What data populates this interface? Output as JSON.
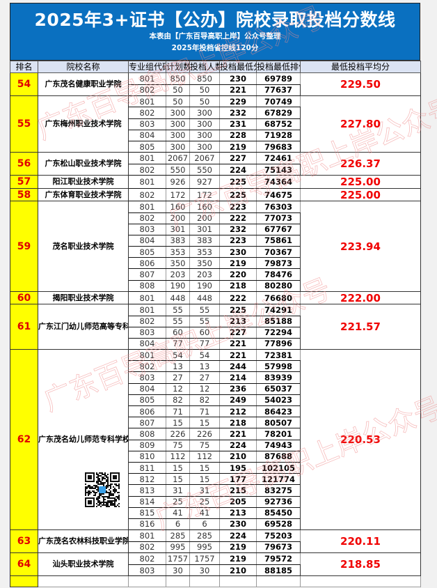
{
  "title": "2025年3+证书【公办】院校录取投档分数线",
  "subtitle": "本表由【广东百导高职上岸】公众号整理",
  "control_line": "2025年投档省控线120分",
  "watermark": "广东百导高职上岸公众号",
  "colors": {
    "banner": "#0a70c0",
    "rank_bg": "#ffff00",
    "rank_text": "#e00000",
    "avg_text": "#f00000",
    "header_bg": "#dbe3f3"
  },
  "columns": [
    "排名",
    "院校名称",
    "专业组代码",
    "计划数",
    "投档人数",
    "投档最低分",
    "投档最低排位",
    "最低投档平均分"
  ],
  "schools": [
    {
      "rank": "54",
      "name": "广东茂名健康职业学院",
      "avg": "229.50",
      "groups": [
        [
          "801",
          "850",
          "850",
          "230",
          "69789"
        ],
        [
          "802",
          "50",
          "50",
          "221",
          "77637"
        ]
      ]
    },
    {
      "rank": "55",
      "name": "广东梅州职业技术学院",
      "avg": "227.80",
      "groups": [
        [
          "801",
          "50",
          "50",
          "229",
          "70749"
        ],
        [
          "802",
          "300",
          "300",
          "232",
          "67829"
        ],
        [
          "803",
          "300",
          "300",
          "231",
          "68752"
        ],
        [
          "804",
          "300",
          "300",
          "228",
          "71928"
        ],
        [
          "805",
          "300",
          "300",
          "219",
          "79683"
        ]
      ]
    },
    {
      "rank": "56",
      "name": "广东松山职业技术学院",
      "avg": "226.37",
      "groups": [
        [
          "801",
          "2067",
          "2067",
          "227",
          "72461"
        ],
        [
          "802",
          "550",
          "550",
          "224",
          "75143"
        ]
      ]
    },
    {
      "rank": "57",
      "name": "阳江职业技术学院",
      "avg": "225.00",
      "groups": [
        [
          "801",
          "926",
          "927",
          "225",
          "74364"
        ]
      ]
    },
    {
      "rank": "58",
      "name": "广东体育职业技术学院",
      "avg": "225.00",
      "groups": [
        [
          "802",
          "172",
          "172",
          "225",
          "74675"
        ]
      ]
    },
    {
      "rank": "59",
      "name": "茂名职业技术学院",
      "avg": "223.94",
      "groups": [
        [
          "801",
          "160",
          "160",
          "223",
          "76303"
        ],
        [
          "802",
          "200",
          "200",
          "222",
          "77073"
        ],
        [
          "803",
          "301",
          "301",
          "232",
          "67767"
        ],
        [
          "804",
          "383",
          "383",
          "223",
          "75861"
        ],
        [
          "805",
          "353",
          "353",
          "230",
          "70367"
        ],
        [
          "806",
          "350",
          "350",
          "219",
          "79873"
        ],
        [
          "807",
          "203",
          "203",
          "220",
          "78476"
        ],
        [
          "808",
          "190",
          "190",
          "218",
          "80280"
        ]
      ]
    },
    {
      "rank": "60",
      "name": "揭阳职业技术学院",
      "avg": "222.00",
      "groups": [
        [
          "801",
          "448",
          "448",
          "222",
          "76680"
        ]
      ]
    },
    {
      "rank": "61",
      "name": "广东江门幼儿师范高等专科学校",
      "avg": "221.57",
      "groups": [
        [
          "801",
          "55",
          "55",
          "225",
          "74291"
        ],
        [
          "802",
          "55",
          "55",
          "213",
          "85188"
        ],
        [
          "803",
          "60",
          "60",
          "227",
          "72294"
        ],
        [
          "804",
          "77",
          "77",
          "221",
          "77896"
        ]
      ]
    },
    {
      "rank": "62",
      "name": "广东茂名幼儿师范专科学校",
      "avg": "220.53",
      "qr": true,
      "groups": [
        [
          "801",
          "54",
          "54",
          "221",
          "72381"
        ],
        [
          "802",
          "13",
          "13",
          "244",
          "57998"
        ],
        [
          "803",
          "27",
          "27",
          "214",
          "83939"
        ],
        [
          "804",
          "12",
          "12",
          "236",
          "65037"
        ],
        [
          "805",
          "82",
          "82",
          "249",
          "54023"
        ],
        [
          "806",
          "71",
          "71",
          "212",
          "86423"
        ],
        [
          "807",
          "15",
          "15",
          "218",
          "80507"
        ],
        [
          "808",
          "226",
          "226",
          "221",
          "78201"
        ],
        [
          "809",
          "75",
          "75",
          "224",
          "74943"
        ],
        [
          "810",
          "112",
          "112",
          "210",
          "87688"
        ],
        [
          "811",
          "15",
          "15",
          "195",
          "102105"
        ],
        [
          "812",
          "15",
          "15",
          "177",
          "121774"
        ],
        [
          "813",
          "31",
          "31",
          "215",
          "83275"
        ],
        [
          "814",
          "25",
          "25",
          "205",
          "92736"
        ],
        [
          "815",
          "41",
          "41",
          "213",
          "85450"
        ],
        [
          "816",
          "6",
          "6",
          "230",
          "69528"
        ]
      ]
    },
    {
      "rank": "63",
      "name": "广东茂名农林科技职业学院",
      "avg": "220.11",
      "groups": [
        [
          "801",
          "285",
          "285",
          "224",
          "75203"
        ],
        [
          "802",
          "995",
          "995",
          "219",
          "79673"
        ]
      ]
    },
    {
      "rank": "64",
      "name": "汕头职业技术学院",
      "avg": "218.85",
      "groups": [
        [
          "802",
          "1757",
          "1757",
          "219",
          "79572"
        ],
        [
          "803",
          "30",
          "30",
          "210",
          "88185"
        ]
      ]
    }
  ]
}
